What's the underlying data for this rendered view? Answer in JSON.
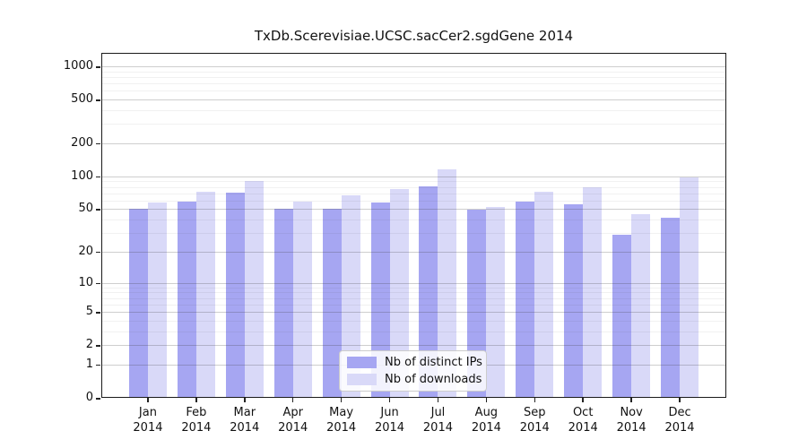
{
  "chart_data": {
    "type": "bar",
    "title": "TxDb.Scerevisiae.UCSC.sacCer2.sgdGene 2014",
    "categories": [
      "Jan",
      "Feb",
      "Mar",
      "Apr",
      "May",
      "Jun",
      "Jul",
      "Aug",
      "Sep",
      "Oct",
      "Nov",
      "Dec"
    ],
    "category_year": "2014",
    "series": [
      {
        "name": "Nb of distinct IPs",
        "color": "#a6a6f2",
        "values": [
          50,
          59,
          71,
          50,
          50,
          58,
          81,
          49,
          59,
          55,
          29,
          42
        ]
      },
      {
        "name": "Nb of downloads",
        "color": "#d9d9f8",
        "values": [
          58,
          72,
          90,
          59,
          67,
          76,
          115,
          52,
          72,
          79,
          45,
          98
        ]
      }
    ],
    "xlabel": "",
    "ylabel": "",
    "yscale": "log1p",
    "ylim": [
      0,
      1330
    ],
    "yticks": [
      1000,
      500,
      200,
      100,
      50,
      20,
      10,
      5,
      2,
      1,
      0
    ],
    "minor_gridlines": [
      3,
      4,
      6,
      7,
      8,
      9,
      30,
      40,
      60,
      70,
      80,
      90,
      300,
      400,
      600,
      700,
      800,
      900
    ],
    "grid": true,
    "legend_position": "lower-center"
  },
  "colors": {
    "grid_major": "#c8c8c8",
    "grid_minor": "#ededed",
    "frame": "#1a1a1a",
    "background": "#ffffff"
  }
}
